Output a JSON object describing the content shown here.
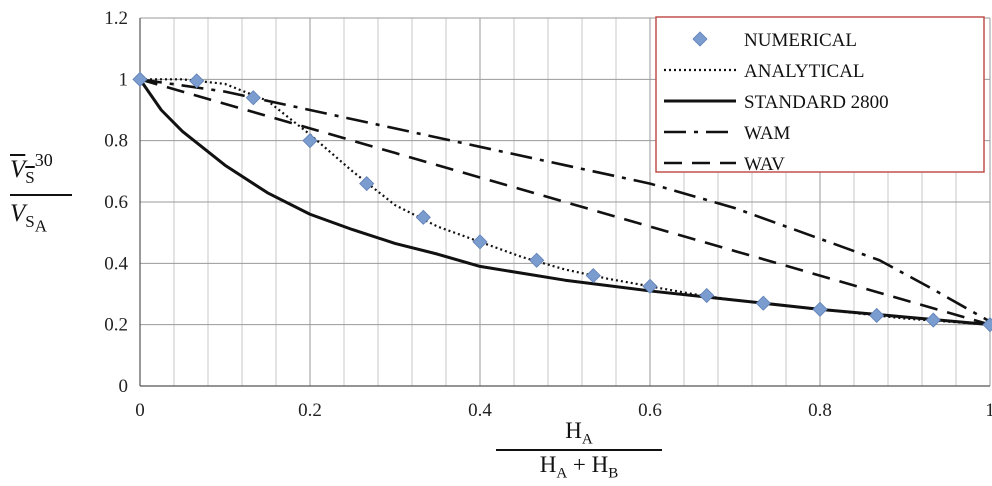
{
  "chart_data": {
    "type": "line",
    "xlim": [
      0,
      1
    ],
    "ylim": [
      0,
      1.2
    ],
    "x_ticks": [
      "0",
      "0.2",
      "0.4",
      "0.6",
      "0.8",
      "1"
    ],
    "y_ticks": [
      "0",
      "0.2",
      "0.4",
      "0.6",
      "0.8",
      "1",
      "1.2"
    ],
    "grid": true,
    "legend_position": "top-right",
    "series": [
      {
        "name": "NUMERICAL",
        "style": "diamond-markers",
        "color": "#7b9ccf",
        "x": [
          0,
          0.0667,
          0.1333,
          0.2,
          0.2667,
          0.3333,
          0.4,
          0.4667,
          0.5333,
          0.6,
          0.6667,
          0.7333,
          0.8,
          0.8667,
          0.9333,
          1.0
        ],
        "y": [
          1.0,
          0.995,
          0.94,
          0.8,
          0.66,
          0.55,
          0.47,
          0.41,
          0.36,
          0.325,
          0.295,
          0.27,
          0.25,
          0.23,
          0.215,
          0.2
        ]
      },
      {
        "name": "ANALYTICAL",
        "style": "dotted",
        "color": "#111111",
        "x": [
          0,
          0.05,
          0.1,
          0.15,
          0.2,
          0.25,
          0.3,
          0.35,
          0.4,
          0.45,
          0.5,
          0.55,
          0.6,
          0.65,
          0.7,
          0.75,
          0.8,
          0.85,
          0.9,
          0.95,
          1.0
        ],
        "y": [
          1.0,
          1.0,
          0.985,
          0.93,
          0.82,
          0.7,
          0.59,
          0.52,
          0.47,
          0.42,
          0.38,
          0.35,
          0.325,
          0.3,
          0.28,
          0.265,
          0.25,
          0.235,
          0.22,
          0.21,
          0.2
        ]
      },
      {
        "name": "STANDARD 2800",
        "style": "solid",
        "color": "#111111",
        "x": [
          0,
          0.025,
          0.05,
          0.1,
          0.15,
          0.2,
          0.25,
          0.3,
          0.35,
          0.4,
          0.5,
          0.6,
          0.7,
          0.8,
          0.9,
          1.0
        ],
        "y": [
          1.0,
          0.9,
          0.83,
          0.72,
          0.63,
          0.56,
          0.51,
          0.465,
          0.43,
          0.39,
          0.345,
          0.31,
          0.28,
          0.25,
          0.225,
          0.2
        ]
      },
      {
        "name": "WAM",
        "style": "dash-dot",
        "color": "#111111",
        "x": [
          0,
          0.1,
          0.2,
          0.3,
          0.4,
          0.5,
          0.6,
          0.7,
          0.8,
          0.87,
          0.93,
          1.0
        ],
        "y": [
          1.0,
          0.96,
          0.9,
          0.84,
          0.78,
          0.72,
          0.66,
          0.58,
          0.48,
          0.41,
          0.32,
          0.21
        ]
      },
      {
        "name": "WAV",
        "style": "dashed",
        "color": "#111111",
        "x": [
          0,
          0.1,
          0.2,
          0.3,
          0.4,
          0.5,
          0.6,
          0.7,
          0.8,
          0.9,
          1.0
        ],
        "y": [
          1.0,
          0.92,
          0.84,
          0.76,
          0.68,
          0.6,
          0.52,
          0.44,
          0.36,
          0.28,
          0.2
        ]
      }
    ]
  }
}
